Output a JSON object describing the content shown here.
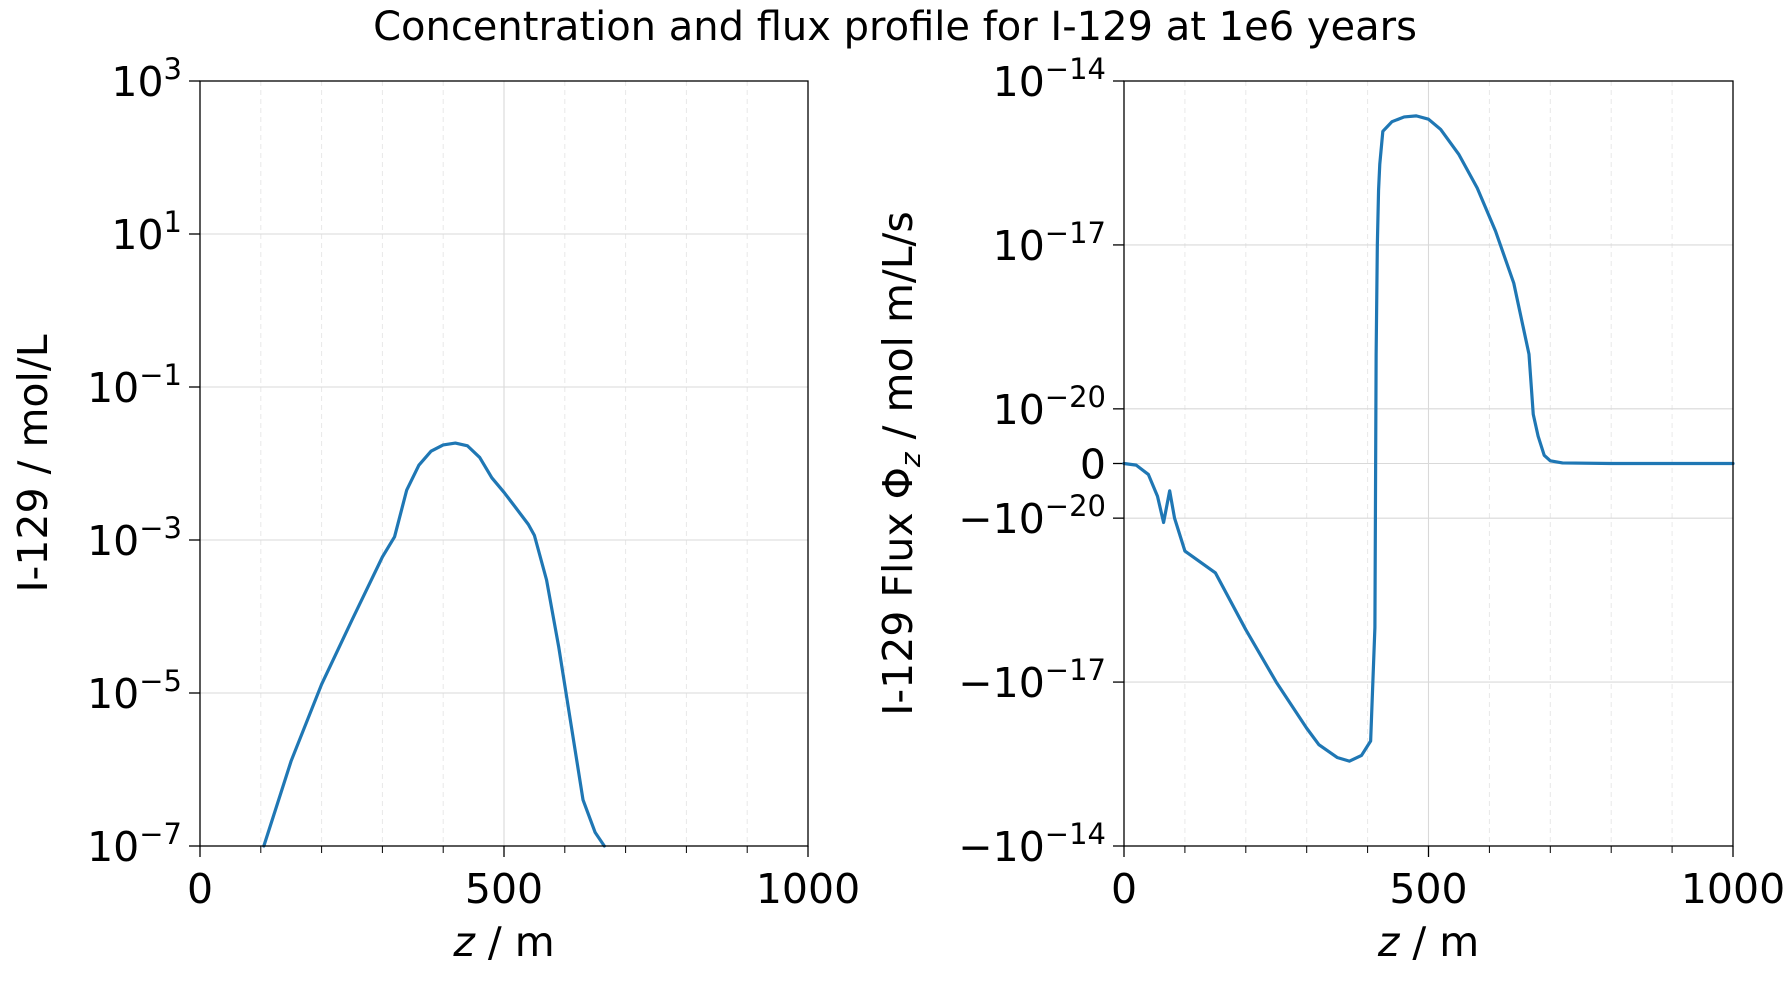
{
  "figure": {
    "title": "Concentration and flux profile for I-129 at 1e6 years"
  },
  "colors": {
    "series": "#1f77b4"
  },
  "chart_data": [
    {
      "type": "line",
      "name": "concentration",
      "xlabel_italic": "z",
      "xlabel_rest": " / m",
      "ylabel": "I-129 / mol/L",
      "y_scale": "log",
      "xlim": [
        0,
        1000
      ],
      "ylim": [
        1e-07,
        1000
      ],
      "grid": true,
      "x_ticks": [
        0,
        500,
        1000
      ],
      "x_tick_labels": [
        "0",
        "500",
        "1000"
      ],
      "y_ticks": [
        1e-07,
        1e-05,
        0.001,
        0.1,
        10,
        1000
      ],
      "y_tick_labels": [
        {
          "base": "10",
          "exp": "−7"
        },
        {
          "base": "10",
          "exp": "−5"
        },
        {
          "base": "10",
          "exp": "−3"
        },
        {
          "base": "10",
          "exp": "−1"
        },
        {
          "base": "10",
          "exp": "1"
        },
        {
          "base": "10",
          "exp": "3"
        }
      ],
      "x": [
        105,
        150,
        200,
        250,
        300,
        320,
        340,
        360,
        380,
        400,
        420,
        440,
        460,
        480,
        500,
        520,
        540,
        550,
        570,
        590,
        610,
        630,
        650,
        665
      ],
      "y": [
        1e-07,
        1.3e-06,
        1.3e-05,
        9e-05,
        0.0006,
        0.0011,
        0.0045,
        0.0095,
        0.0145,
        0.0175,
        0.0185,
        0.017,
        0.012,
        0.0065,
        0.0042,
        0.0026,
        0.0016,
        0.00115,
        0.0003,
        4e-05,
        4e-06,
        4e-07,
        1.5e-07,
        1e-07
      ]
    },
    {
      "type": "line",
      "name": "flux",
      "xlabel_italic": "z",
      "xlabel_rest": " / m",
      "ylabel": "I-129 Flux Φ",
      "ylabel_sub": "z",
      "ylabel_unit": " / mol m/L/s",
      "y_scale": "symlog",
      "linthresh": 1e-20,
      "xlim": [
        0,
        1000
      ],
      "ylim": [
        -1e-14,
        1e-14
      ],
      "grid": true,
      "x_ticks": [
        0,
        500,
        1000
      ],
      "x_tick_labels": [
        "0",
        "500",
        "1000"
      ],
      "y_ticks": [
        -1e-14,
        -1e-17,
        -1e-20,
        0,
        1e-20,
        1e-17,
        1e-14
      ],
      "y_tick_labels": [
        {
          "base": "−10",
          "exp": "−14"
        },
        {
          "base": "−10",
          "exp": "−17"
        },
        {
          "base": "−10",
          "exp": "−20"
        },
        {
          "base": "0",
          "exp": ""
        },
        {
          "base": "10",
          "exp": "−20"
        },
        {
          "base": "10",
          "exp": "−17"
        },
        {
          "base": "10",
          "exp": "−14"
        }
      ],
      "x": [
        0,
        20,
        40,
        55,
        65,
        75,
        83,
        100,
        150,
        200,
        250,
        300,
        320,
        350,
        370,
        390,
        405,
        412,
        414,
        416,
        418,
        420,
        425,
        440,
        460,
        480,
        500,
        520,
        550,
        580,
        610,
        640,
        665,
        672,
        680,
        690,
        700,
        720,
        800,
        900,
        1000
      ],
      "y": [
        0,
        -3e-22,
        -2e-21,
        -6e-21,
        -1.2e-20,
        -5e-21,
        -1e-20,
        -4e-20,
        -1e-19,
        -1.1e-18,
        -1e-17,
        -7e-17,
        -1.4e-16,
        -2.4e-16,
        -2.8e-16,
        -2.2e-16,
        -1.2e-16,
        -1e-18,
        1e-19,
        1e-17,
        1e-16,
        3e-16,
        1.2e-15,
        1.8e-15,
        2.2e-15,
        2.3e-15,
        2e-15,
        1.3e-15,
        4.5e-16,
        1.1e-16,
        1.8e-17,
        2e-18,
        1e-19,
        9e-21,
        5e-21,
        1.5e-21,
        5e-22,
        1e-22,
        0,
        0,
        0
      ]
    }
  ]
}
